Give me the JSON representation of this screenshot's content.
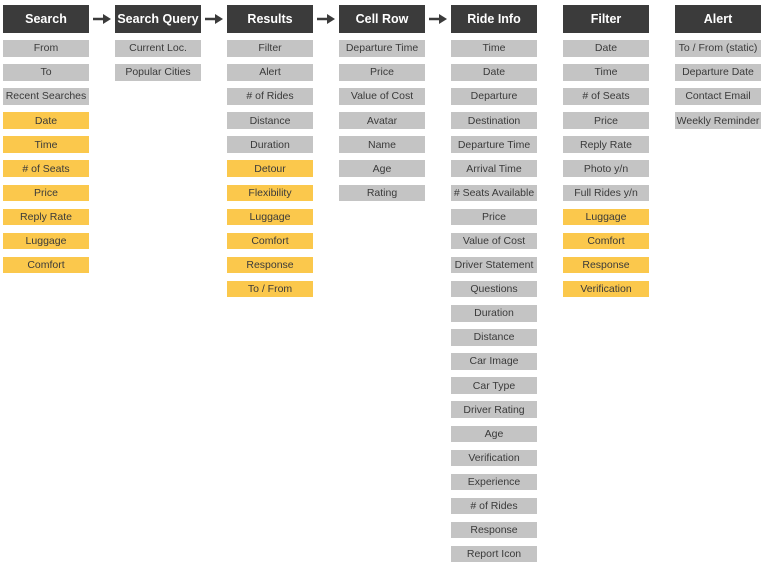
{
  "colors": {
    "header_bg": "#3b3b3b",
    "item_default": "#c4c4c4",
    "item_highlight": "#fbc84c",
    "arrow": "#3b3b3b"
  },
  "columns": [
    {
      "id": "search",
      "title": "Search",
      "items": [
        {
          "label": "From",
          "highlight": false
        },
        {
          "label": "To",
          "highlight": false
        },
        {
          "label": "Recent Searches",
          "highlight": false
        },
        {
          "label": "Date",
          "highlight": true
        },
        {
          "label": "Time",
          "highlight": true
        },
        {
          "label": "# of Seats",
          "highlight": true
        },
        {
          "label": "Price",
          "highlight": true
        },
        {
          "label": "Reply Rate",
          "highlight": true
        },
        {
          "label": "Luggage",
          "highlight": true
        },
        {
          "label": "Comfort",
          "highlight": true
        }
      ]
    },
    {
      "id": "search-query",
      "title": "Search Query",
      "items": [
        {
          "label": "Current Loc.",
          "highlight": false
        },
        {
          "label": "Popular Cities",
          "highlight": false
        }
      ]
    },
    {
      "id": "results",
      "title": "Results",
      "items": [
        {
          "label": "Filter",
          "highlight": false
        },
        {
          "label": "Alert",
          "highlight": false
        },
        {
          "label": "# of Rides",
          "highlight": false
        },
        {
          "label": "Distance",
          "highlight": false
        },
        {
          "label": "Duration",
          "highlight": false
        },
        {
          "label": "Detour",
          "highlight": true
        },
        {
          "label": "Flexibility",
          "highlight": true
        },
        {
          "label": "Luggage",
          "highlight": true
        },
        {
          "label": "Comfort",
          "highlight": true
        },
        {
          "label": "Response",
          "highlight": true
        },
        {
          "label": "To / From",
          "highlight": true
        }
      ]
    },
    {
      "id": "cell-row",
      "title": "Cell Row",
      "items": [
        {
          "label": "Departure Time",
          "highlight": false
        },
        {
          "label": "Price",
          "highlight": false
        },
        {
          "label": "Value of Cost",
          "highlight": false
        },
        {
          "label": "Avatar",
          "highlight": false
        },
        {
          "label": "Name",
          "highlight": false
        },
        {
          "label": "Age",
          "highlight": false
        },
        {
          "label": "Rating",
          "highlight": false
        }
      ]
    },
    {
      "id": "ride-info",
      "title": "Ride Info",
      "items": [
        {
          "label": "Time",
          "highlight": false
        },
        {
          "label": "Date",
          "highlight": false
        },
        {
          "label": "Departure",
          "highlight": false
        },
        {
          "label": "Destination",
          "highlight": false
        },
        {
          "label": "Departure Time",
          "highlight": false
        },
        {
          "label": "Arrival Time",
          "highlight": false
        },
        {
          "label": "# Seats Available",
          "highlight": false
        },
        {
          "label": "Price",
          "highlight": false
        },
        {
          "label": "Value of Cost",
          "highlight": false
        },
        {
          "label": "Driver Statement",
          "highlight": false
        },
        {
          "label": "Questions",
          "highlight": false
        },
        {
          "label": "Duration",
          "highlight": false
        },
        {
          "label": "Distance",
          "highlight": false
        },
        {
          "label": "Car Image",
          "highlight": false
        },
        {
          "label": "Car Type",
          "highlight": false
        },
        {
          "label": "Driver Rating",
          "highlight": false
        },
        {
          "label": "Age",
          "highlight": false
        },
        {
          "label": "Verification",
          "highlight": false
        },
        {
          "label": "Experience",
          "highlight": false
        },
        {
          "label": "# of Rides",
          "highlight": false
        },
        {
          "label": "Response",
          "highlight": false
        },
        {
          "label": "Report Icon",
          "highlight": false
        }
      ]
    },
    {
      "id": "filter",
      "title": "Filter",
      "items": [
        {
          "label": "Date",
          "highlight": false
        },
        {
          "label": "Time",
          "highlight": false
        },
        {
          "label": "# of Seats",
          "highlight": false
        },
        {
          "label": "Price",
          "highlight": false
        },
        {
          "label": "Reply Rate",
          "highlight": false
        },
        {
          "label": "Photo y/n",
          "highlight": false
        },
        {
          "label": "Full Rides y/n",
          "highlight": false
        },
        {
          "label": "Luggage",
          "highlight": true
        },
        {
          "label": "Comfort",
          "highlight": true
        },
        {
          "label": "Response",
          "highlight": true
        },
        {
          "label": "Verification",
          "highlight": true
        }
      ]
    },
    {
      "id": "alert",
      "title": "Alert",
      "items": [
        {
          "label": "To / From (static)",
          "highlight": false
        },
        {
          "label": "Departure Date",
          "highlight": false
        },
        {
          "label": "Contact Email",
          "highlight": false
        },
        {
          "label": "Weekly Reminder",
          "highlight": false
        }
      ]
    }
  ],
  "arrows": [
    {
      "from": "search",
      "to": "search-query"
    },
    {
      "from": "search-query",
      "to": "results"
    },
    {
      "from": "results",
      "to": "cell-row"
    },
    {
      "from": "cell-row",
      "to": "ride-info"
    }
  ]
}
